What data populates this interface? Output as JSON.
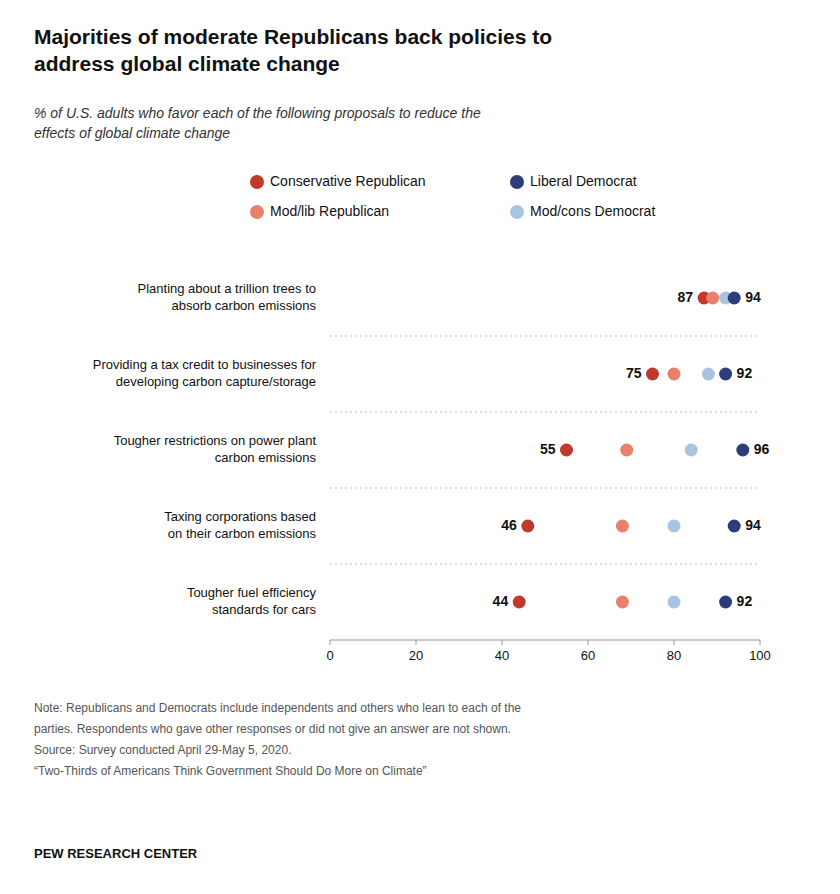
{
  "chart_data": {
    "type": "dot",
    "orientation": "horizontal",
    "title": "Majorities of moderate Republicans back policies to\naddress global climate change",
    "subtitle": "% of U.S. adults who favor each of the following proposals to reduce the\neffects of global climate change",
    "categories": [
      "Planting about a trillion trees to\nabsorb carbon emissions",
      "Providing a tax credit to businesses for\ndeveloping carbon capture/storage",
      "Tougher restrictions on power plant\ncarbon emissions",
      "Taxing corporations based\non their carbon emissions",
      "Tougher fuel efficiency\nstandards for cars"
    ],
    "series": [
      {
        "name": "Conservative Republican",
        "color": "#c0392b",
        "values": [
          87,
          75,
          55,
          46,
          44
        ],
        "data_labels": true
      },
      {
        "name": "Mod/lib Republican",
        "color": "#e8806a",
        "values": [
          89,
          80,
          69,
          68,
          68
        ]
      },
      {
        "name": "Mod/cons Democrat",
        "color": "#a8c4e0",
        "values": [
          92,
          88,
          84,
          80,
          80
        ]
      },
      {
        "name": "Liberal Democrat",
        "color": "#2c3e7a",
        "values": [
          94,
          92,
          96,
          94,
          92
        ],
        "data_labels": true
      }
    ],
    "xlim": [
      0,
      100
    ],
    "xticks": [
      0,
      20,
      40,
      60,
      80,
      100
    ],
    "grid": false,
    "legend": "top",
    "notes": [
      "Note: Republicans and Democrats include independents and others who lean to each of the",
      "parties. Respondents who gave other responses or did not give an answer are not shown.",
      "Source: Survey conducted April 29-May 5, 2020.",
      "“Two-Thirds of Americans Think Government Should Do More on Climate”"
    ],
    "footer": "PEW RESEARCH CENTER"
  }
}
